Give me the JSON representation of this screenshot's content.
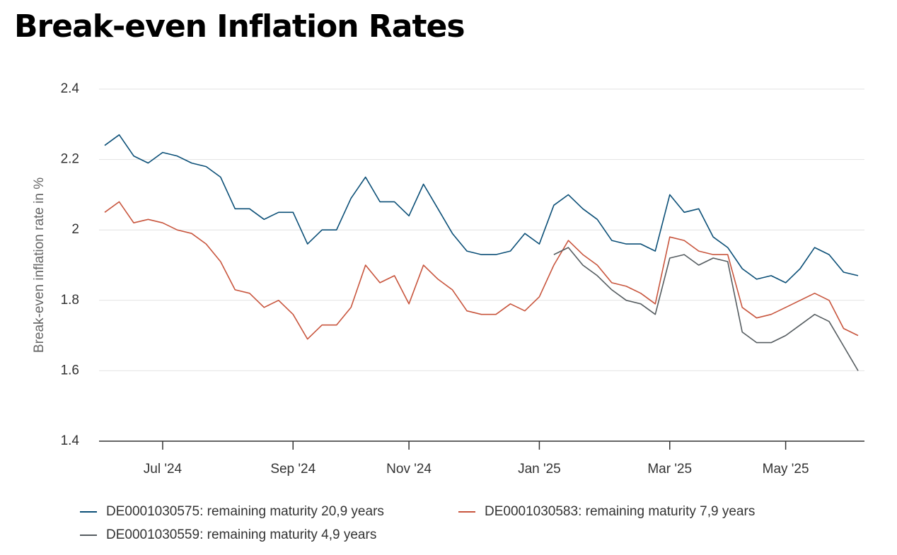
{
  "chart_data": {
    "type": "line",
    "title": "Break-even Inflation Rates",
    "y_label": "Break-even inflation rate in %",
    "categories": [
      null,
      null,
      null,
      null,
      "Jul '24",
      null,
      null,
      null,
      null,
      null,
      null,
      null,
      null,
      "Sep '24",
      null,
      null,
      null,
      null,
      null,
      null,
      null,
      "Nov '24",
      null,
      null,
      null,
      null,
      null,
      null,
      null,
      null,
      "Jan '25",
      null,
      null,
      null,
      null,
      null,
      null,
      null,
      null,
      "Mar '25",
      null,
      null,
      null,
      null,
      null,
      null,
      null,
      "May '25",
      null,
      null,
      null,
      null,
      null
    ],
    "series": [
      {
        "name": "DE0001030575: remaining maturity 20,9 years",
        "color": "#0b4f77",
        "values": [
          2.24,
          2.27,
          2.21,
          2.19,
          2.22,
          2.21,
          2.19,
          2.18,
          2.15,
          2.06,
          2.06,
          2.03,
          2.05,
          2.05,
          1.96,
          2.0,
          2.0,
          2.09,
          2.15,
          2.08,
          2.08,
          2.04,
          2.13,
          2.06,
          1.99,
          1.94,
          1.93,
          1.93,
          1.94,
          1.99,
          1.96,
          2.07,
          2.1,
          2.06,
          2.03,
          1.97,
          1.96,
          1.96,
          1.94,
          2.1,
          2.05,
          2.06,
          1.98,
          1.95,
          1.89,
          1.86,
          1.87,
          1.85,
          1.89,
          1.95,
          1.93,
          1.88,
          1.87
        ]
      },
      {
        "name": "DE0001030583: remaining maturity 7,9 years",
        "color": "#c8553d",
        "values": [
          2.05,
          2.08,
          2.02,
          2.03,
          2.02,
          2.0,
          1.99,
          1.96,
          1.91,
          1.83,
          1.82,
          1.78,
          1.8,
          1.76,
          1.69,
          1.73,
          1.73,
          1.78,
          1.9,
          1.85,
          1.87,
          1.79,
          1.9,
          1.86,
          1.83,
          1.77,
          1.76,
          1.76,
          1.79,
          1.77,
          1.81,
          1.9,
          1.97,
          1.93,
          1.9,
          1.85,
          1.84,
          1.82,
          1.79,
          1.98,
          1.97,
          1.94,
          1.93,
          1.93,
          1.78,
          1.75,
          1.76,
          1.78,
          1.8,
          1.82,
          1.8,
          1.72,
          1.7
        ]
      },
      {
        "name": "DE0001030559: remaining maturity 4,9 years",
        "color": "#555c60",
        "values": [
          null,
          null,
          null,
          null,
          null,
          null,
          null,
          null,
          null,
          null,
          null,
          null,
          null,
          null,
          null,
          null,
          null,
          null,
          null,
          null,
          null,
          null,
          null,
          null,
          null,
          null,
          null,
          null,
          null,
          null,
          null,
          1.93,
          1.95,
          1.9,
          1.87,
          1.83,
          1.8,
          1.79,
          1.76,
          1.92,
          1.93,
          1.9,
          1.92,
          1.91,
          1.71,
          1.68,
          1.68,
          1.7,
          1.73,
          1.76,
          1.74,
          1.67,
          1.6
        ]
      }
    ],
    "ylim": [
      1.4,
      2.4
    ],
    "yticks": [
      1.4,
      1.6,
      1.8,
      2,
      2.2,
      2.4
    ],
    "grid": true
  }
}
